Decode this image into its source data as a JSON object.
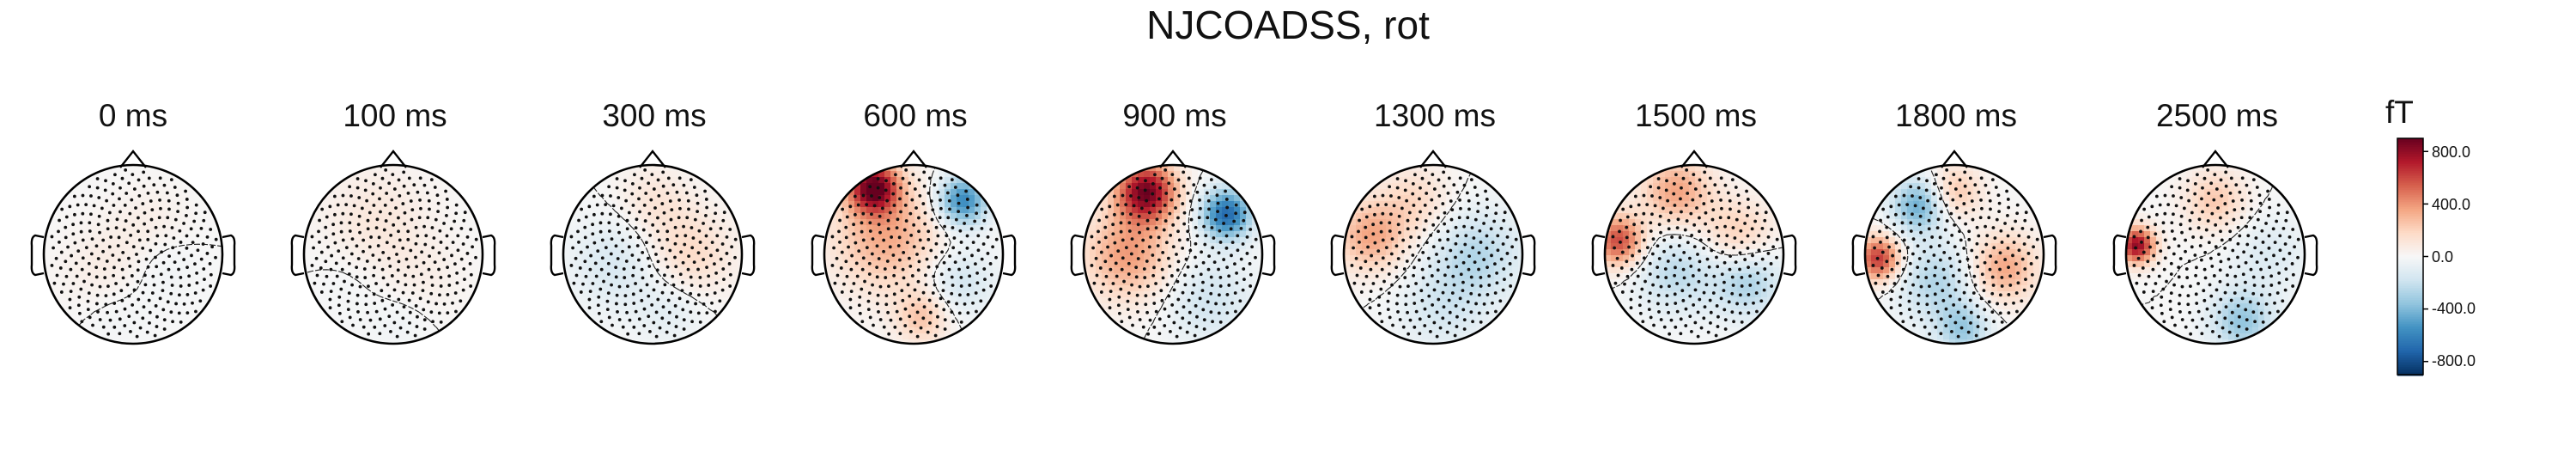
{
  "figure": {
    "title": "NJCOADSS, rot"
  },
  "colorbar": {
    "unit": "fT",
    "range": [
      -900,
      900
    ],
    "ticks": [
      800,
      400,
      0,
      -400,
      -800
    ],
    "tick_labels": [
      "800.0",
      "400.0",
      "0.0",
      "-400.0",
      "-800.0"
    ],
    "colormap": "RdBu_r",
    "colors": [
      "#053061",
      "#2166ac",
      "#4393c3",
      "#92c5de",
      "#d1e5f0",
      "#f7f7f7",
      "#fddbc7",
      "#f4a582",
      "#d6604d",
      "#b2182b",
      "#67001f"
    ]
  },
  "chart_data": {
    "type": "heatmap",
    "subtype": "topomap",
    "title": "NJCOADSS, rot",
    "unit": "fT",
    "vlim": [
      -900,
      900
    ],
    "sensor_markers": "dots",
    "contour_lines": true,
    "panels": [
      {
        "label": "0 ms",
        "time_ms": 0,
        "peak_pos_fT": 80,
        "peak_neg_fT": -60
      },
      {
        "label": "100 ms",
        "time_ms": 100,
        "peak_pos_fT": 100,
        "peak_neg_fT": -50
      },
      {
        "label": "300 ms",
        "time_ms": 300,
        "peak_pos_fT": 180,
        "peak_neg_fT": -150
      },
      {
        "label": "600 ms",
        "time_ms": 600,
        "peak_pos_fT": 850,
        "peak_neg_fT": -600
      },
      {
        "label": "900 ms",
        "time_ms": 900,
        "peak_pos_fT": 850,
        "peak_neg_fT": -700
      },
      {
        "label": "1300 ms",
        "time_ms": 1300,
        "peak_pos_fT": 350,
        "peak_neg_fT": -250
      },
      {
        "label": "1500 ms",
        "time_ms": 1500,
        "peak_pos_fT": 600,
        "peak_neg_fT": -300
      },
      {
        "label": "1800 ms",
        "time_ms": 1800,
        "peak_pos_fT": 650,
        "peak_neg_fT": -450
      },
      {
        "label": "2500 ms",
        "time_ms": 2500,
        "peak_pos_fT": 800,
        "peak_neg_fT": -350
      }
    ]
  }
}
